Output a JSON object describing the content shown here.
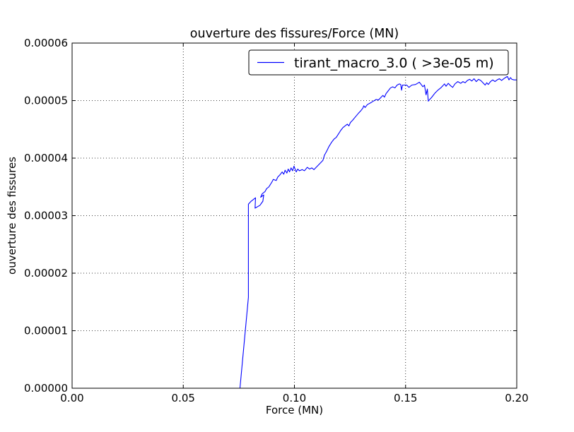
{
  "chart_data": {
    "type": "line",
    "title": "ouverture des fissures/Force (MN)",
    "xlabel": "Force (MN)",
    "ylabel": "ouverture des fissures",
    "xlim": [
      0.0,
      0.2
    ],
    "ylim": [
      0.0,
      6e-05
    ],
    "x_ticks": [
      0.0,
      0.05,
      0.1,
      0.15,
      0.2
    ],
    "x_tick_labels": [
      "0.00",
      "0.05",
      "0.10",
      "0.15",
      "0.20"
    ],
    "y_ticks": [
      0,
      1e-05,
      2e-05,
      3e-05,
      4e-05,
      5e-05,
      6e-05
    ],
    "y_tick_labels": [
      "0.00000",
      "0.00001",
      "0.00002",
      "0.00003",
      "0.00004",
      "0.00005",
      "0.00006"
    ],
    "grid": true,
    "legend_position": "top-right",
    "series": [
      {
        "name": "tirant_macro_3.0 ( >3e-05 m)",
        "color": "#0000ff",
        "points": [
          [
            0.0755,
            0.0
          ],
          [
            0.0793,
            1.58e-05
          ],
          [
            0.0793,
            3.2e-05
          ],
          [
            0.0805,
            3.25e-05
          ],
          [
            0.0825,
            3.31e-05
          ],
          [
            0.0823,
            3.13e-05
          ],
          [
            0.0845,
            3.18e-05
          ],
          [
            0.0858,
            3.25e-05
          ],
          [
            0.0862,
            3.36e-05
          ],
          [
            0.0848,
            3.32e-05
          ],
          [
            0.0855,
            3.38e-05
          ],
          [
            0.0868,
            3.42e-05
          ],
          [
            0.0875,
            3.47e-05
          ],
          [
            0.0885,
            3.5e-05
          ],
          [
            0.0898,
            3.58e-05
          ],
          [
            0.0905,
            3.63e-05
          ],
          [
            0.0918,
            3.61e-05
          ],
          [
            0.0925,
            3.67e-05
          ],
          [
            0.0935,
            3.71e-05
          ],
          [
            0.0945,
            3.76e-05
          ],
          [
            0.0952,
            3.72e-05
          ],
          [
            0.0958,
            3.79e-05
          ],
          [
            0.0966,
            3.74e-05
          ],
          [
            0.0972,
            3.81e-05
          ],
          [
            0.0978,
            3.76e-05
          ],
          [
            0.0985,
            3.83e-05
          ],
          [
            0.0992,
            3.78e-05
          ],
          [
            0.0998,
            3.86e-05
          ],
          [
            0.1002,
            3.82e-05
          ],
          [
            0.1008,
            3.76e-05
          ],
          [
            0.1015,
            3.81e-05
          ],
          [
            0.1022,
            3.78e-05
          ],
          [
            0.1035,
            3.8e-05
          ],
          [
            0.1045,
            3.78e-05
          ],
          [
            0.1058,
            3.84e-05
          ],
          [
            0.1068,
            3.81e-05
          ],
          [
            0.1078,
            3.83e-05
          ],
          [
            0.1088,
            3.8e-05
          ],
          [
            0.1098,
            3.84e-05
          ],
          [
            0.1108,
            3.88e-05
          ],
          [
            0.1118,
            3.92e-05
          ],
          [
            0.1128,
            3.96e-05
          ],
          [
            0.1135,
            4.05e-05
          ],
          [
            0.1145,
            4.12e-05
          ],
          [
            0.1155,
            4.2e-05
          ],
          [
            0.1168,
            4.28e-05
          ],
          [
            0.1178,
            4.33e-05
          ],
          [
            0.1188,
            4.36e-05
          ],
          [
            0.1198,
            4.42e-05
          ],
          [
            0.1208,
            4.48e-05
          ],
          [
            0.1218,
            4.53e-05
          ],
          [
            0.1228,
            4.56e-05
          ],
          [
            0.1238,
            4.59e-05
          ],
          [
            0.1245,
            4.56e-05
          ],
          [
            0.1252,
            4.62e-05
          ],
          [
            0.1262,
            4.66e-05
          ],
          [
            0.1275,
            4.72e-05
          ],
          [
            0.1288,
            4.78e-05
          ],
          [
            0.1298,
            4.82e-05
          ],
          [
            0.1308,
            4.87e-05
          ],
          [
            0.1312,
            4.91e-05
          ],
          [
            0.1318,
            4.88e-05
          ],
          [
            0.1328,
            4.93e-05
          ],
          [
            0.1342,
            4.96e-05
          ],
          [
            0.1355,
            4.99e-05
          ],
          [
            0.1368,
            5.02e-05
          ],
          [
            0.1378,
            5.01e-05
          ],
          [
            0.1388,
            5.05e-05
          ],
          [
            0.1398,
            5.09e-05
          ],
          [
            0.1405,
            5.06e-05
          ],
          [
            0.1412,
            5.12e-05
          ],
          [
            0.1422,
            5.17e-05
          ],
          [
            0.1432,
            5.22e-05
          ],
          [
            0.1442,
            5.24e-05
          ],
          [
            0.1452,
            5.22e-05
          ],
          [
            0.1462,
            5.27e-05
          ],
          [
            0.1472,
            5.29e-05
          ],
          [
            0.1478,
            5.28e-05
          ],
          [
            0.1482,
            5.18e-05
          ],
          [
            0.1486,
            5.27e-05
          ],
          [
            0.1505,
            5.27e-05
          ],
          [
            0.1515,
            5.23e-05
          ],
          [
            0.1528,
            5.27e-05
          ],
          [
            0.1545,
            5.28e-05
          ],
          [
            0.1562,
            5.32e-05
          ],
          [
            0.1578,
            5.24e-05
          ],
          [
            0.1585,
            5.27e-05
          ],
          [
            0.1592,
            5.1e-05
          ],
          [
            0.1598,
            5.2e-05
          ],
          [
            0.1602,
            4.99e-05
          ],
          [
            0.1618,
            5.06e-05
          ],
          [
            0.1632,
            5.13e-05
          ],
          [
            0.1645,
            5.18e-05
          ],
          [
            0.1658,
            5.22e-05
          ],
          [
            0.1668,
            5.26e-05
          ],
          [
            0.1675,
            5.29e-05
          ],
          [
            0.1682,
            5.25e-05
          ],
          [
            0.1692,
            5.3e-05
          ],
          [
            0.1702,
            5.26e-05
          ],
          [
            0.1712,
            5.23e-05
          ],
          [
            0.1722,
            5.29e-05
          ],
          [
            0.1735,
            5.33e-05
          ],
          [
            0.1748,
            5.3e-05
          ],
          [
            0.1758,
            5.33e-05
          ],
          [
            0.1768,
            5.31e-05
          ],
          [
            0.1778,
            5.35e-05
          ],
          [
            0.1788,
            5.37e-05
          ],
          [
            0.1798,
            5.34e-05
          ],
          [
            0.1808,
            5.38e-05
          ],
          [
            0.1818,
            5.33e-05
          ],
          [
            0.1828,
            5.37e-05
          ],
          [
            0.1838,
            5.35e-05
          ],
          [
            0.1848,
            5.31e-05
          ],
          [
            0.1858,
            5.27e-05
          ],
          [
            0.1865,
            5.31e-05
          ],
          [
            0.1872,
            5.28e-05
          ],
          [
            0.1882,
            5.33e-05
          ],
          [
            0.1892,
            5.36e-05
          ],
          [
            0.1902,
            5.33e-05
          ],
          [
            0.1912,
            5.36e-05
          ],
          [
            0.1922,
            5.38e-05
          ],
          [
            0.1932,
            5.35e-05
          ],
          [
            0.1945,
            5.39e-05
          ],
          [
            0.1958,
            5.42e-05
          ],
          [
            0.1965,
            5.36e-05
          ],
          [
            0.1972,
            5.4e-05
          ],
          [
            0.1978,
            5.37e-05
          ],
          [
            0.1988,
            5.36e-05
          ],
          [
            0.2,
            5.36e-05
          ]
        ]
      }
    ]
  }
}
